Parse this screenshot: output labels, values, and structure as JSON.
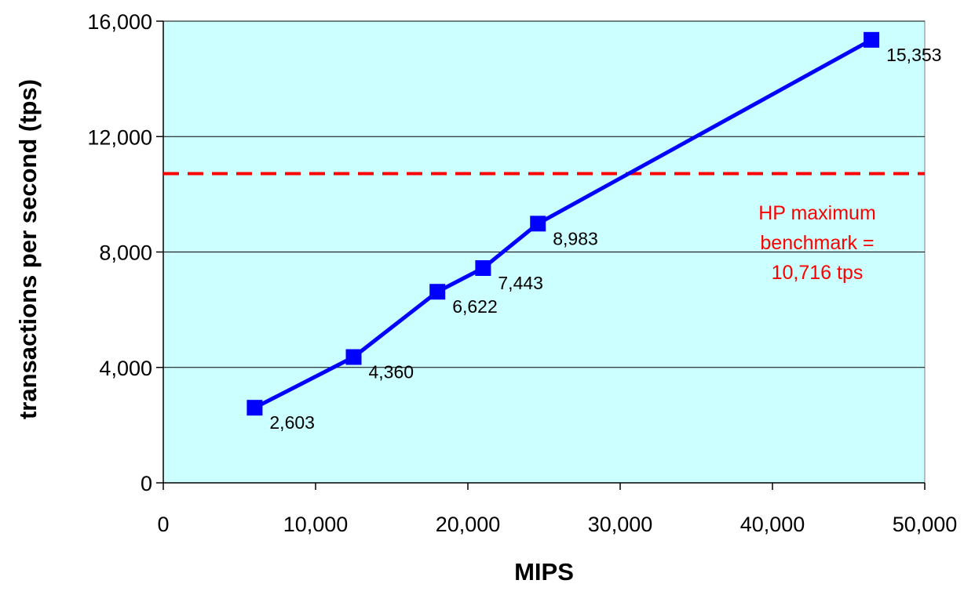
{
  "chart_data": {
    "type": "line",
    "title": "",
    "xlabel": "MIPS",
    "ylabel": "transactions per second (tps)",
    "xlim": [
      0,
      50000
    ],
    "ylim": [
      0,
      16000
    ],
    "x_ticks": [
      0,
      10000,
      20000,
      30000,
      40000,
      50000
    ],
    "x_tick_labels": [
      "0",
      "10,000",
      "20,000",
      "30,000",
      "40,000",
      "50,000"
    ],
    "y_ticks": [
      0,
      4000,
      8000,
      12000,
      16000
    ],
    "y_tick_labels": [
      "0",
      "4,000",
      "8,000",
      "12,000",
      "16,000"
    ],
    "grid": "horizontal major gridlines",
    "legend": "none",
    "series": [
      {
        "x": [
          6000,
          12500,
          18000,
          21000,
          24600,
          46500
        ],
        "y": [
          2603,
          4360,
          6622,
          7443,
          8983,
          15353
        ],
        "labels": [
          "2,603",
          "4,360",
          "6,622",
          "7,443",
          "8,983",
          "15,353"
        ],
        "color": "#0000ff",
        "marker": "square"
      }
    ],
    "reference_line": {
      "y": 10716,
      "color": "#ff0000",
      "style": "dashed",
      "label_lines": [
        "HP maximum",
        "benchmark =",
        "10,716 tps"
      ]
    },
    "colors": {
      "plot_background": "#ccffff",
      "series": "#0000ff",
      "reference": "#ff0000",
      "gridline": "#000000"
    }
  }
}
